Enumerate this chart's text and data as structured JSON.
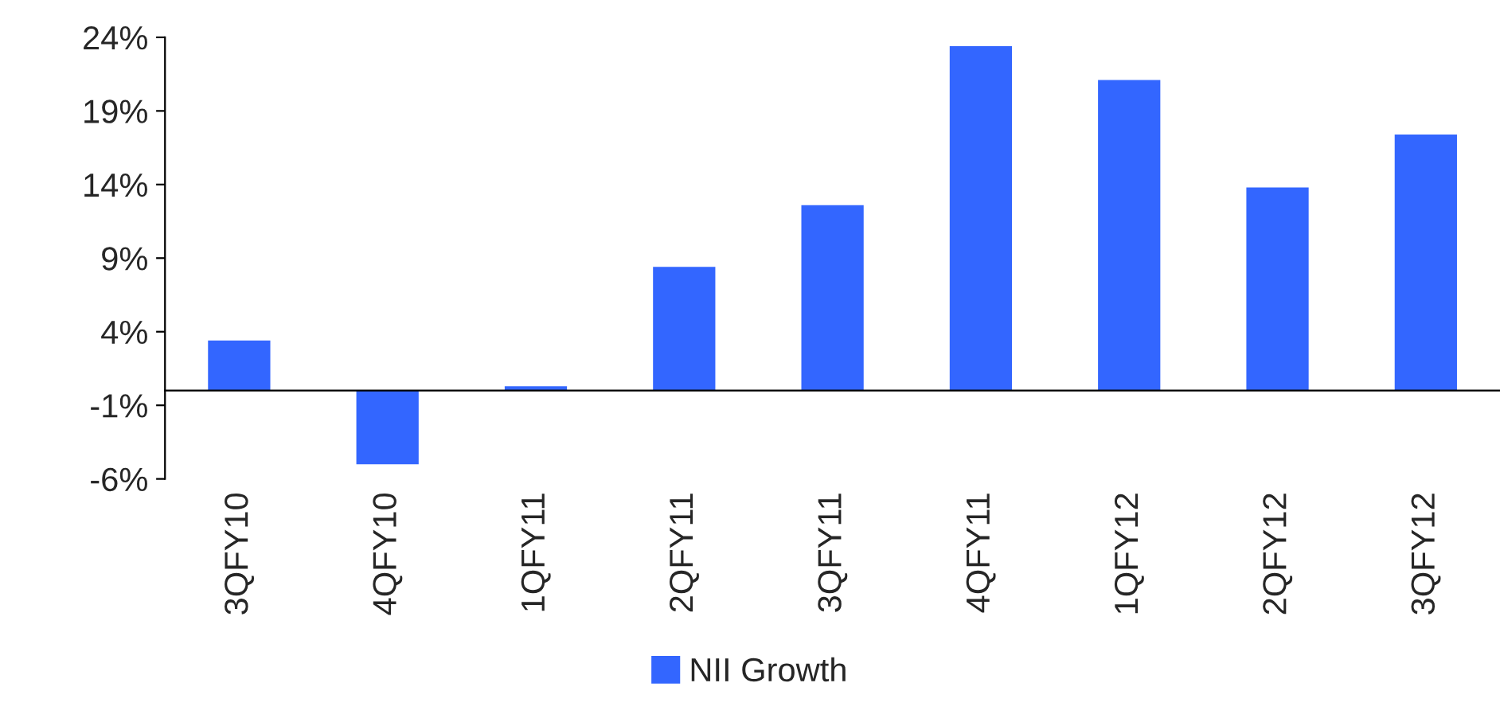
{
  "chart_data": {
    "type": "bar",
    "categories": [
      "3QFY10",
      "4QFY10",
      "1QFY11",
      "2QFY11",
      "3QFY11",
      "4QFY11",
      "1QFY12",
      "2QFY12",
      "3QFY12"
    ],
    "series": [
      {
        "name": "NII Growth",
        "color": "#3366ff",
        "values": [
          3.4,
          -5.0,
          0.3,
          8.4,
          12.6,
          23.4,
          21.1,
          13.8,
          17.4
        ]
      }
    ],
    "ylim": [
      -6,
      24
    ],
    "yticks": [
      {
        "value": 24,
        "label": "24%"
      },
      {
        "value": 19,
        "label": "19%"
      },
      {
        "value": 14,
        "label": "14%"
      },
      {
        "value": 9,
        "label": "9%"
      },
      {
        "value": 4,
        "label": "4%"
      },
      {
        "value": -1,
        "label": "-1%"
      },
      {
        "value": -6,
        "label": "-6%"
      }
    ],
    "grid": false,
    "legend": "bottom"
  }
}
